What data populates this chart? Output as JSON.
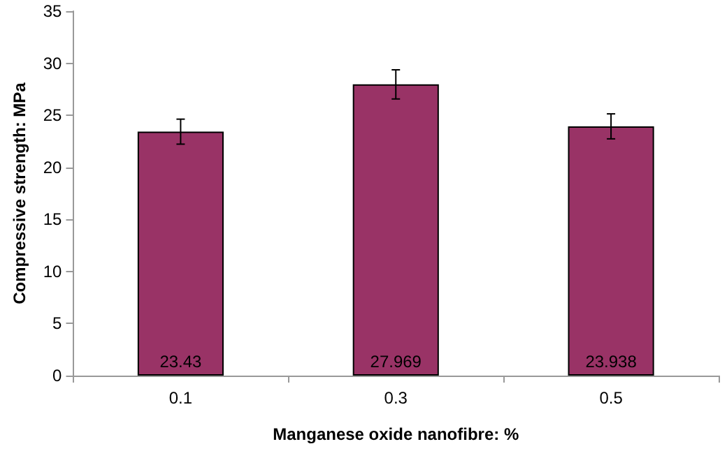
{
  "chart_data": {
    "type": "bar",
    "xlabel": "Manganese oxide nanofibre: %",
    "ylabel": "Compressive strength: MPa",
    "categories": [
      "0.1",
      "0.3",
      "0.5"
    ],
    "values": [
      23.43,
      27.969,
      23.938
    ],
    "errors": [
      1.2,
      1.4,
      1.2
    ],
    "color": "#993366",
    "ylim": [
      0,
      35
    ],
    "yticks": [
      0,
      5,
      10,
      15,
      20,
      25,
      30,
      35
    ],
    "data_labels": true
  }
}
